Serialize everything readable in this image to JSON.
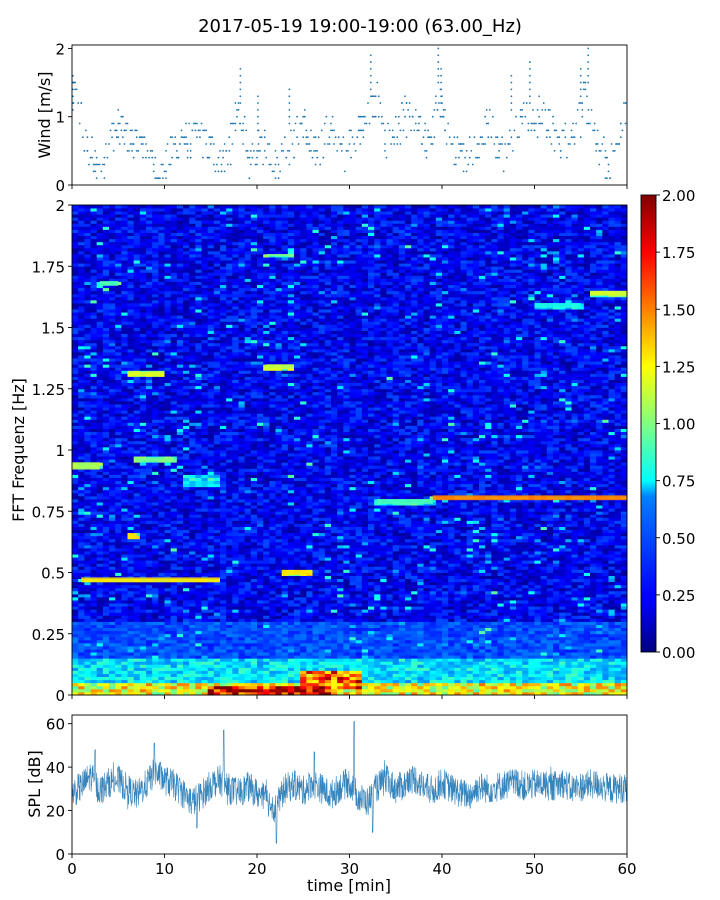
{
  "figure_title": "2017-05-19 19:00-19:00 (63.00_Hz)",
  "chart_data": [
    {
      "id": "wind",
      "type": "scatter",
      "ylabel": "Wind [m/s]",
      "xlim": [
        0,
        60
      ],
      "ylim": [
        0,
        2.05
      ],
      "yticks": [
        0,
        1,
        2
      ],
      "ytick_labels": [
        "0",
        "1",
        "2"
      ],
      "x_ticklabels_shown": false,
      "color": "#1f77b4",
      "x_resolution_s": 10,
      "value_step": 0.1,
      "segments": [
        [
          0,
          0.0,
          1.5
        ],
        [
          1,
          1.0,
          1.0
        ],
        [
          2,
          1.2,
          0.6
        ],
        [
          3,
          2.6,
          0.3
        ],
        [
          4,
          3.0,
          0.2
        ],
        [
          5,
          4.0,
          0.6
        ],
        [
          6,
          5.0,
          0.9
        ],
        [
          7,
          6.0,
          0.7
        ],
        [
          8,
          7.5,
          0.6
        ],
        [
          9,
          8.4,
          0.5
        ],
        [
          10,
          9.0,
          0.2
        ],
        [
          11,
          10.0,
          0.2
        ],
        [
          12,
          11.0,
          0.6
        ],
        [
          13,
          12.0,
          0.7
        ],
        [
          14,
          13.0,
          0.6
        ],
        [
          15,
          14.0,
          0.7
        ],
        [
          16,
          15.0,
          0.5
        ],
        [
          17,
          16.0,
          0.4
        ],
        [
          18,
          17.0,
          0.5
        ],
        [
          19,
          18.0,
          1.1
        ],
        [
          20,
          18.5,
          0.9
        ],
        [
          21,
          19.0,
          0.3
        ],
        [
          22,
          20.0,
          0.5
        ],
        [
          23,
          21.0,
          0.6
        ],
        [
          24,
          22.0,
          0.3
        ],
        [
          25,
          23.0,
          0.5
        ],
        [
          26,
          24.0,
          0.6
        ],
        [
          27,
          25.0,
          1.0
        ],
        [
          28,
          25.5,
          0.7
        ],
        [
          29,
          26.0,
          0.4
        ],
        [
          30,
          27.0,
          0.6
        ],
        [
          31,
          28.0,
          0.8
        ],
        [
          32,
          29.0,
          0.4
        ],
        [
          33,
          30.0,
          0.6
        ],
        [
          34,
          31.0,
          0.8
        ],
        [
          35,
          32.0,
          1.0
        ],
        [
          36,
          33.0,
          1.3
        ],
        [
          37,
          33.5,
          0.8
        ],
        [
          38,
          34.0,
          0.6
        ],
        [
          39,
          35.0,
          0.8
        ],
        [
          40,
          36.0,
          1.0
        ],
        [
          41,
          37.0,
          0.9
        ],
        [
          42,
          38.0,
          0.6
        ],
        [
          43,
          39.0,
          0.8
        ],
        [
          44,
          39.6,
          1.3
        ],
        [
          45,
          40.0,
          1.1
        ],
        [
          46,
          41.0,
          0.5
        ],
        [
          47,
          42.0,
          0.4
        ],
        [
          48,
          43.0,
          0.5
        ],
        [
          49,
          44.0,
          0.6
        ],
        [
          50,
          45.0,
          0.9
        ],
        [
          51,
          46.0,
          0.6
        ],
        [
          52,
          47.0,
          0.4
        ],
        [
          53,
          48.0,
          0.9
        ],
        [
          54,
          49.0,
          1.1
        ],
        [
          55,
          50.0,
          0.9
        ],
        [
          56,
          51.0,
          1.1
        ],
        [
          57,
          52.0,
          0.7
        ],
        [
          58,
          53.0,
          0.6
        ],
        [
          59,
          54.0,
          0.8
        ],
        [
          60,
          55.0,
          1.0
        ],
        [
          61,
          55.5,
          1.3
        ],
        [
          62,
          56.0,
          0.9
        ],
        [
          63,
          57.0,
          0.5
        ],
        [
          64,
          58.0,
          0.3
        ],
        [
          65,
          59.0,
          0.5
        ],
        [
          66,
          59.6,
          1.0
        ],
        [
          67,
          60.0,
          1.2
        ]
      ],
      "peaks": [
        {
          "x": 0.1,
          "y": 1.6
        },
        {
          "x": 18.2,
          "y": 1.7
        },
        {
          "x": 20.1,
          "y": 1.3
        },
        {
          "x": 23.5,
          "y": 1.4
        },
        {
          "x": 32.3,
          "y": 1.9
        },
        {
          "x": 39.6,
          "y": 2.0
        },
        {
          "x": 39.9,
          "y": 1.7
        },
        {
          "x": 47.5,
          "y": 1.6
        },
        {
          "x": 49.5,
          "y": 1.8
        },
        {
          "x": 55.0,
          "y": 1.7
        },
        {
          "x": 55.8,
          "y": 2.0
        }
      ]
    },
    {
      "id": "spectrogram",
      "type": "heatmap",
      "ylabel": "FFT Frequenz [Hz]",
      "xlim": [
        0,
        60
      ],
      "ylim": [
        0,
        2
      ],
      "yticks": [
        0,
        0.25,
        0.5,
        0.75,
        1,
        1.25,
        1.5,
        1.75,
        2
      ],
      "ytick_labels": [
        "0",
        "0.25",
        "0.5",
        "0.75",
        "1",
        "1.25",
        "1.5",
        "1.75",
        "2"
      ],
      "x_ticklabels_shown": false,
      "colormap": "jet",
      "value_range": [
        0,
        2
      ],
      "background_level": 0.25,
      "bands": [
        {
          "x_range": [
            0,
            60
          ],
          "y_range": [
            0,
            0.05
          ],
          "level": 1.4
        },
        {
          "x_range": [
            0,
            60
          ],
          "y_range": [
            0.05,
            0.15
          ],
          "level": 0.8
        },
        {
          "x_range": [
            0,
            60
          ],
          "y_range": [
            0.15,
            0.3
          ],
          "level": 0.45
        },
        {
          "x_range": [
            15,
            28
          ],
          "y_range": [
            0,
            0.04
          ],
          "level": 2.0
        },
        {
          "x_range": [
            25,
            31
          ],
          "y_range": [
            0.03,
            0.1
          ],
          "level": 1.8
        },
        {
          "x_range": [
            39,
            60
          ],
          "y_range": [
            0.795,
            0.815
          ],
          "level": 1.5
        },
        {
          "x_range": [
            33,
            39
          ],
          "y_range": [
            0.78,
            0.8
          ],
          "level": 0.9
        },
        {
          "x_range": [
            0,
            3
          ],
          "y_range": [
            0.92,
            0.95
          ],
          "level": 1.1
        },
        {
          "x_range": [
            7,
            11
          ],
          "y_range": [
            0.95,
            0.97
          ],
          "level": 1.0
        },
        {
          "x_range": [
            12,
            16
          ],
          "y_range": [
            0.85,
            0.9
          ],
          "level": 0.85
        },
        {
          "x_range": [
            6,
            10
          ],
          "y_range": [
            1.3,
            1.32
          ],
          "level": 1.2
        },
        {
          "x_range": [
            21,
            24
          ],
          "y_range": [
            1.33,
            1.35
          ],
          "level": 1.15
        },
        {
          "x_range": [
            21,
            24
          ],
          "y_range": [
            1.79,
            1.8
          ],
          "level": 1.0
        },
        {
          "x_range": [
            3,
            5
          ],
          "y_range": [
            1.67,
            1.69
          ],
          "level": 0.9
        },
        {
          "x_range": [
            6,
            7
          ],
          "y_range": [
            0.64,
            0.66
          ],
          "level": 1.3
        },
        {
          "x_range": [
            1,
            16
          ],
          "y_range": [
            0.46,
            0.48
          ],
          "level": 1.3
        },
        {
          "x_range": [
            23,
            26
          ],
          "y_range": [
            0.49,
            0.51
          ],
          "level": 1.3
        },
        {
          "x_range": [
            56,
            60
          ],
          "y_range": [
            1.63,
            1.65
          ],
          "level": 1.2
        },
        {
          "x_range": [
            50,
            55
          ],
          "y_range": [
            1.58,
            1.6
          ],
          "level": 0.8
        }
      ]
    },
    {
      "id": "colorbar",
      "type": "colorbar",
      "colormap": "jet",
      "range": [
        0,
        2
      ],
      "ticks": [
        0,
        0.25,
        0.5,
        0.75,
        1.0,
        1.25,
        1.5,
        1.75,
        2.0
      ],
      "tick_labels": [
        "0.00",
        "0.25",
        "0.50",
        "0.75",
        "1.00",
        "1.25",
        "1.50",
        "1.75",
        "2.00"
      ]
    },
    {
      "id": "spl",
      "type": "line",
      "ylabel": "SPL [dB]",
      "xlabel": "time [min]",
      "xlim": [
        0,
        60
      ],
      "ylim": [
        0,
        64
      ],
      "yticks": [
        0,
        20,
        40,
        60
      ],
      "ytick_labels": [
        "0",
        "20",
        "40",
        "60"
      ],
      "xticks": [
        0,
        10,
        20,
        30,
        40,
        50,
        60
      ],
      "xtick_labels": [
        "0",
        "10",
        "20",
        "30",
        "40",
        "50",
        "60"
      ],
      "color": "#1f77b4",
      "envelope": {
        "x": [
          0,
          1,
          2,
          3,
          4,
          5,
          6,
          7,
          8,
          9,
          10,
          11,
          12,
          13,
          14,
          15,
          16,
          17,
          18,
          19,
          20,
          21,
          22,
          23,
          24,
          25,
          26,
          27,
          28,
          29,
          30,
          31,
          32,
          33,
          34,
          35,
          36,
          37,
          38,
          39,
          40,
          41,
          42,
          43,
          44,
          45,
          46,
          47,
          48,
          49,
          50,
          51,
          52,
          53,
          54,
          55,
          56,
          57,
          58,
          59,
          60
        ],
        "mean": [
          28,
          31,
          36,
          29,
          33,
          34,
          30,
          27,
          32,
          38,
          34,
          32,
          28,
          24,
          27,
          32,
          34,
          30,
          28,
          31,
          28,
          25,
          21,
          30,
          32,
          29,
          33,
          30,
          27,
          31,
          33,
          26,
          24,
          31,
          34,
          30,
          32,
          35,
          31,
          29,
          33,
          30,
          28,
          27,
          31,
          30,
          31,
          32,
          33,
          31,
          32,
          32,
          31,
          33,
          30,
          31,
          32,
          32,
          30,
          30,
          31
        ]
      },
      "peaks": [
        {
          "x": 2.5,
          "y": 48
        },
        {
          "x": 8.9,
          "y": 51
        },
        {
          "x": 16.4,
          "y": 57
        },
        {
          "x": 26.2,
          "y": 47
        },
        {
          "x": 30.5,
          "y": 61
        },
        {
          "x": 22.1,
          "y": 5
        },
        {
          "x": 32.5,
          "y": 10
        },
        {
          "x": 13.5,
          "y": 12
        }
      ]
    }
  ]
}
